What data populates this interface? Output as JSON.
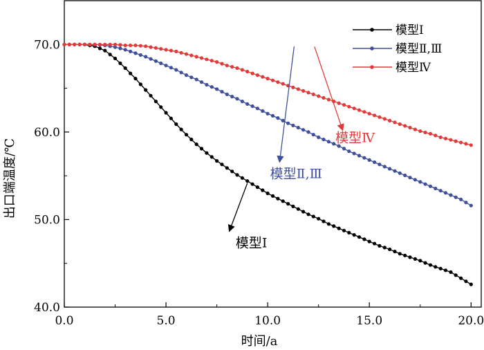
{
  "chart_data": {
    "type": "line",
    "title": "",
    "xlabel": "时间/a",
    "ylabel": "出口端温度/℃",
    "xlim": [
      0,
      20.5
    ],
    "ylim": [
      40,
      75
    ],
    "xticks": [
      0,
      5,
      10,
      15,
      20
    ],
    "yticks": [
      40,
      50,
      60,
      70
    ],
    "xtick_labels": [
      "0.0",
      "5.0",
      "10.0",
      "15.0",
      "20.0"
    ],
    "ytick_labels": [
      "40.0",
      "50.0",
      "60.0",
      "70.0"
    ],
    "x": [
      0,
      0.5,
      1,
      1.5,
      2,
      2.5,
      3,
      3.5,
      4,
      4.5,
      5,
      5.5,
      6,
      6.5,
      7,
      7.5,
      8,
      8.5,
      9,
      9.5,
      10,
      10.5,
      11,
      11.5,
      12,
      12.5,
      13,
      13.5,
      14,
      14.5,
      15,
      15.5,
      16,
      16.5,
      17,
      17.5,
      18,
      18.5,
      19,
      19.5,
      20
    ],
    "series": [
      {
        "name": "模型Ⅰ",
        "color": "#000000",
        "values": [
          70.0,
          70.0,
          70.0,
          69.8,
          69.3,
          68.4,
          67.3,
          66.1,
          64.8,
          63.5,
          62.2,
          60.9,
          59.7,
          58.6,
          57.6,
          56.7,
          55.9,
          55.1,
          54.4,
          53.7,
          53.0,
          52.4,
          51.8,
          51.2,
          50.6,
          50.1,
          49.5,
          49.0,
          48.5,
          48.0,
          47.5,
          47.0,
          46.6,
          46.1,
          45.7,
          45.3,
          44.8,
          44.4,
          44.0,
          43.3,
          42.6
        ]
      },
      {
        "name": "模型Ⅱ,Ⅲ",
        "color": "#3f4f9b",
        "values": [
          70.0,
          70.0,
          70.0,
          70.0,
          69.9,
          69.7,
          69.4,
          69.0,
          68.6,
          68.1,
          67.6,
          67.1,
          66.5,
          66.0,
          65.4,
          64.9,
          64.3,
          63.8,
          63.2,
          62.7,
          62.1,
          61.6,
          61.0,
          60.5,
          60.0,
          59.4,
          58.9,
          58.4,
          57.8,
          57.3,
          56.8,
          56.3,
          55.8,
          55.3,
          54.8,
          54.3,
          53.8,
          53.3,
          52.8,
          52.3,
          51.6
        ]
      },
      {
        "name": "模型Ⅳ",
        "color": "#e03a3a",
        "values": [
          70.0,
          70.0,
          70.0,
          70.0,
          70.0,
          70.0,
          69.9,
          69.9,
          69.8,
          69.6,
          69.4,
          69.2,
          68.9,
          68.6,
          68.3,
          68.0,
          67.6,
          67.3,
          66.9,
          66.5,
          66.1,
          65.7,
          65.3,
          64.9,
          64.5,
          64.1,
          63.7,
          63.3,
          62.9,
          62.5,
          62.1,
          61.7,
          61.3,
          60.9,
          60.5,
          60.1,
          59.8,
          59.4,
          59.1,
          58.8,
          58.5
        ]
      }
    ],
    "annotations": [
      {
        "text": "模型Ⅰ",
        "color": "#000000",
        "series": 0,
        "x": 9.0,
        "text_x": 9.2,
        "text_y": 47.4
      },
      {
        "text": "模型Ⅱ,Ⅲ",
        "color": "#3f4f9b",
        "series": 1,
        "x": 11.3,
        "text_x": 11.4,
        "text_y": 55.3
      },
      {
        "text": "模型Ⅳ",
        "color": "#e03a3a",
        "series": 2,
        "x": 12.3,
        "text_x": 14.3,
        "text_y": 59.4
      }
    ],
    "legend_position": "top-right",
    "grid": false
  }
}
